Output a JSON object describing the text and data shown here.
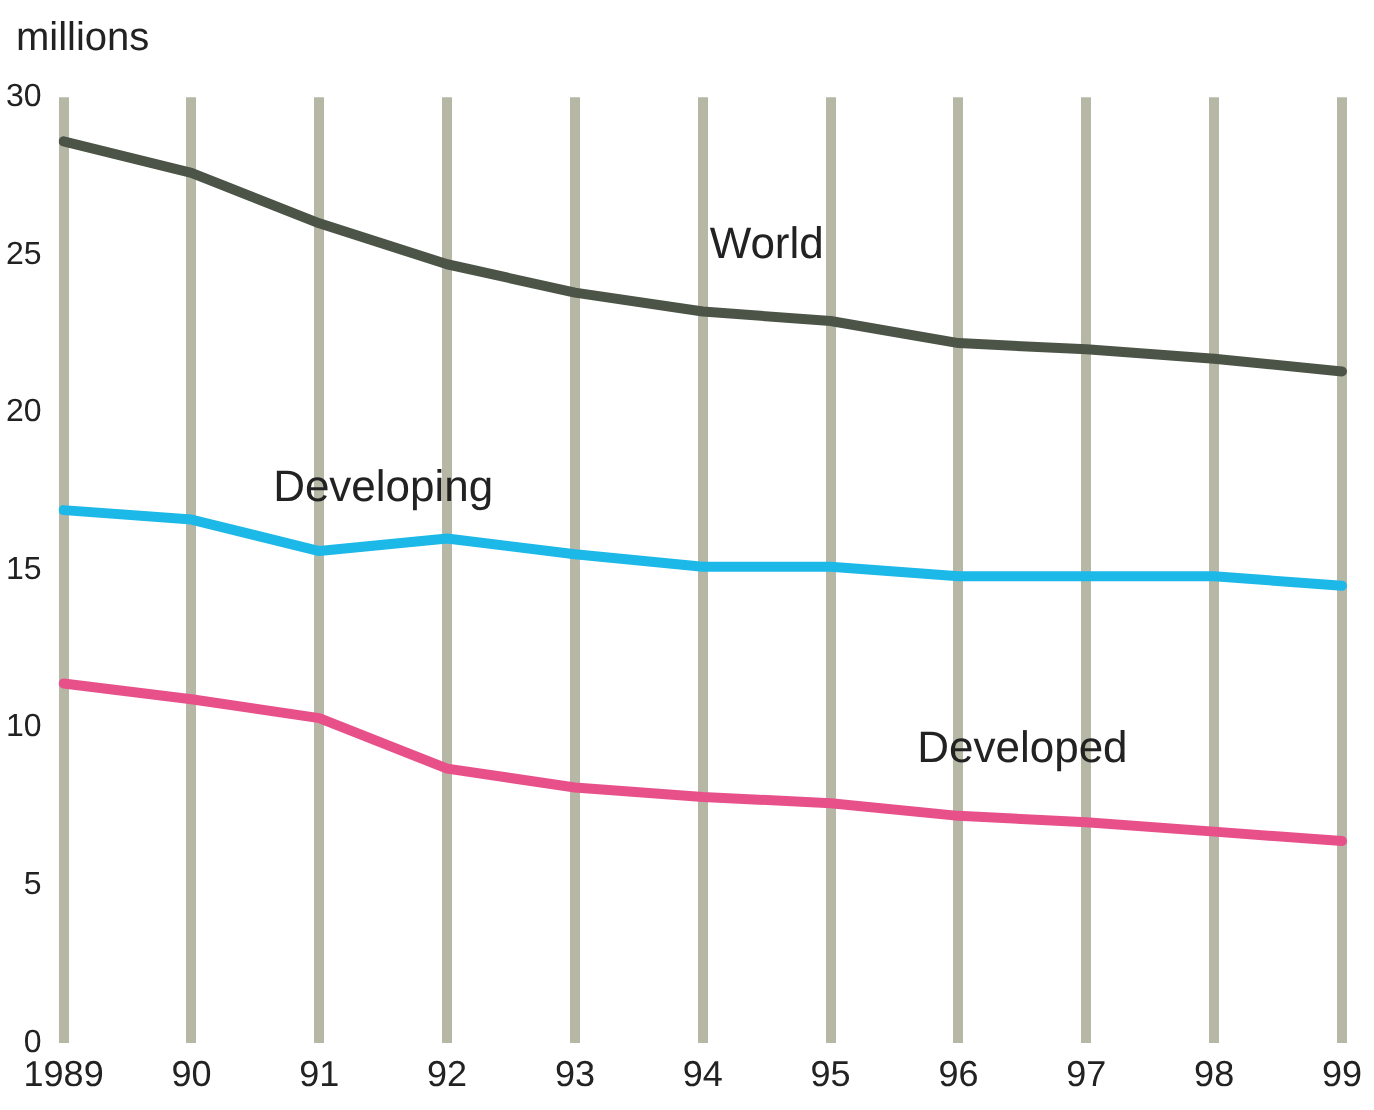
{
  "chart_data": {
    "type": "line",
    "ylabel": "millions",
    "categories": [
      "1989",
      "90",
      "91",
      "92",
      "93",
      "94",
      "95",
      "96",
      "97",
      "98",
      "99"
    ],
    "series": [
      {
        "name": "World",
        "color": "#4b5446",
        "values": [
          28.6,
          27.6,
          26.0,
          24.7,
          23.8,
          23.2,
          22.9,
          22.2,
          22.0,
          21.7,
          21.3
        ]
      },
      {
        "name": "Developing",
        "color": "#1cb8e8",
        "values": [
          16.9,
          16.6,
          15.6,
          16.0,
          15.5,
          15.1,
          15.1,
          14.8,
          14.8,
          14.8,
          14.5
        ]
      },
      {
        "name": "Developed",
        "color": "#e8508a",
        "values": [
          11.4,
          10.9,
          10.3,
          8.7,
          8.1,
          7.8,
          7.6,
          7.2,
          7.0,
          6.7,
          6.4
        ]
      }
    ],
    "ylim": [
      0,
      30
    ],
    "yticks": [
      0,
      5,
      10,
      15,
      20,
      25,
      30
    ],
    "grid": "x",
    "legend": false,
    "marker": "none",
    "line_style": "solid"
  }
}
